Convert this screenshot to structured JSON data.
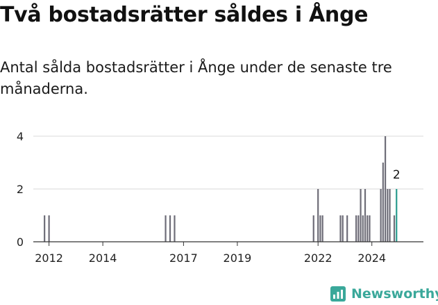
{
  "header": {
    "title": "Två bostadsrätter såldes i Ånge",
    "subtitle": "Antal sålda bostadsrätter i Ånge under de senaste tre månaderna."
  },
  "brand": {
    "name": "Newsworthy",
    "color": "#3aa89a",
    "icon": "bar-chart-logo-icon"
  },
  "colors": {
    "bar": "#6e6d78",
    "highlight": "#2a9d8f",
    "grid": "#d9d9d9",
    "axis": "#333333"
  },
  "chart_data": {
    "type": "bar",
    "title": "Två bostadsrätter såldes i Ånge",
    "xlabel": "",
    "ylabel": "",
    "ylim": [
      0,
      4
    ],
    "yticks": [
      0,
      2,
      4
    ],
    "xlim": [
      "2011-06",
      "2025-12"
    ],
    "xticks": [
      {
        "label": "2012",
        "date": "2012-01"
      },
      {
        "label": "2014",
        "date": "2014-01"
      },
      {
        "label": "2017",
        "date": "2017-01"
      },
      {
        "label": "2019",
        "date": "2019-01"
      },
      {
        "label": "2022",
        "date": "2022-01"
      },
      {
        "label": "2024",
        "date": "2024-01"
      }
    ],
    "grid": true,
    "bars": [
      {
        "date": "2011-11",
        "value": 1
      },
      {
        "date": "2012-01",
        "value": 1
      },
      {
        "date": "2016-05",
        "value": 1
      },
      {
        "date": "2016-07",
        "value": 1
      },
      {
        "date": "2016-09",
        "value": 1
      },
      {
        "date": "2021-11",
        "value": 1
      },
      {
        "date": "2022-01",
        "value": 2
      },
      {
        "date": "2022-02",
        "value": 1
      },
      {
        "date": "2022-03",
        "value": 1
      },
      {
        "date": "2022-11",
        "value": 1
      },
      {
        "date": "2022-12",
        "value": 1
      },
      {
        "date": "2023-02",
        "value": 1
      },
      {
        "date": "2023-06",
        "value": 1
      },
      {
        "date": "2023-07",
        "value": 1
      },
      {
        "date": "2023-08",
        "value": 2
      },
      {
        "date": "2023-09",
        "value": 1
      },
      {
        "date": "2023-10",
        "value": 2
      },
      {
        "date": "2023-11",
        "value": 1
      },
      {
        "date": "2023-12",
        "value": 1
      },
      {
        "date": "2024-05",
        "value": 2
      },
      {
        "date": "2024-06",
        "value": 3
      },
      {
        "date": "2024-07",
        "value": 4
      },
      {
        "date": "2024-08",
        "value": 2
      },
      {
        "date": "2024-09",
        "value": 2
      },
      {
        "date": "2024-11",
        "value": 1
      },
      {
        "date": "2024-12",
        "value": 2,
        "highlight": true
      }
    ],
    "annotations": [
      {
        "date": "2024-12",
        "value": 2,
        "text": "2"
      }
    ]
  }
}
